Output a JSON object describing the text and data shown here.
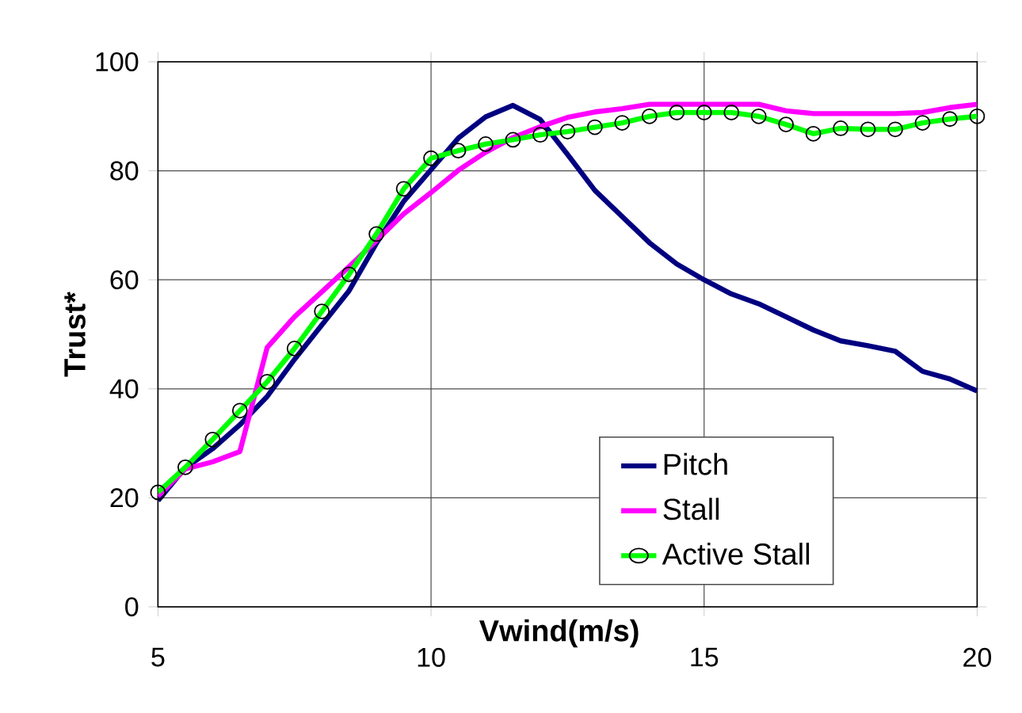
{
  "chart_data": {
    "type": "line",
    "xlabel": "Vwind(m/s)",
    "ylabel": "Trust*",
    "x": [
      5,
      5.5,
      6,
      6.5,
      7,
      7.5,
      8,
      8.5,
      9,
      9.5,
      10,
      10.5,
      11,
      11.5,
      12,
      12.5,
      13,
      13.5,
      14,
      14.5,
      15,
      15.5,
      16,
      16.5,
      17,
      17.5,
      18,
      18.5,
      19,
      19.5,
      20
    ],
    "series": [
      {
        "name": "Pitch",
        "color": "#000080",
        "marker": "none",
        "values": [
          19.5,
          25.5,
          29,
          33.4,
          38.6,
          45.4,
          51.7,
          58,
          66.7,
          74.4,
          80.2,
          86,
          89.9,
          92,
          89.4,
          83,
          76.4,
          71.6,
          66.8,
          62.9,
          60,
          57.4,
          55.6,
          53.2,
          50.8,
          48.8,
          47.9,
          46.9,
          43.2,
          41.8,
          39.6
        ]
      },
      {
        "name": "Stall",
        "color": "#ff00ff",
        "marker": "none",
        "values": [
          20.3,
          25.3,
          26.6,
          28.5,
          47.6,
          53.2,
          57.8,
          62.4,
          67.2,
          72.1,
          76,
          80.1,
          83.4,
          86.1,
          88.1,
          89.8,
          90.8,
          91.4,
          92.2,
          92.2,
          92.2,
          92.2,
          92.2,
          91,
          90.5,
          90.5,
          90.5,
          90.5,
          90.7,
          91.6,
          92.2
        ]
      },
      {
        "name": "Active Stall",
        "color": "#00ff00",
        "marker": "circle",
        "values": [
          21,
          25.6,
          30.7,
          36,
          41.3,
          47.4,
          54.2,
          61,
          68.4,
          76.7,
          82.3,
          83.7,
          84.9,
          85.7,
          86.6,
          87.2,
          88,
          88.8,
          90,
          90.7,
          90.7,
          90.7,
          90,
          88.5,
          86.8,
          87.8,
          87.6,
          87.6,
          88.8,
          89.5,
          90
        ]
      }
    ],
    "xlim": [
      5,
      20
    ],
    "ylim": [
      0,
      100
    ],
    "xticks": [
      5,
      10,
      15,
      20
    ],
    "yticks": [
      0,
      20,
      40,
      60,
      80,
      100
    ],
    "grid": true,
    "legend": "bottom right",
    "line_style": "solid"
  }
}
